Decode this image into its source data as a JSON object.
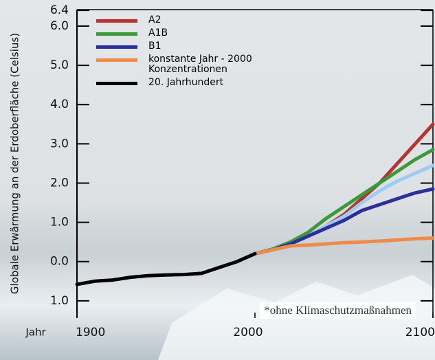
{
  "chart_data": {
    "type": "line",
    "y_label": "Globale Erwärmung an der Erdoberfläche (Celsius)",
    "x_label": "Jahr",
    "annotation": "*ohne Klimaschutzmaßnahmen",
    "xlim": [
      1900,
      2100
    ],
    "xticks": [
      1900,
      2000,
      2100
    ],
    "ylim": [
      -1.44,
      6.42
    ],
    "yticks": [
      6.4,
      {
        "value": 6,
        "label": "6.0"
      },
      {
        "value": 5,
        "label": "5.0"
      },
      {
        "value": 4,
        "label": "4.0"
      },
      {
        "value": 3,
        "label": "3.0"
      },
      {
        "value": 2,
        "label": "2.0"
      },
      {
        "value": 1,
        "label": "1.0"
      },
      {
        "value": 0,
        "label": "0.0"
      },
      {
        "value": -1,
        "label": "1.0"
      }
    ],
    "x": [
      1900,
      1910,
      1920,
      1930,
      1940,
      1950,
      1960,
      1970,
      1980,
      1990,
      2000,
      2010,
      2020,
      2030,
      2040,
      2050,
      2060,
      2070,
      2080,
      2090,
      2100
    ],
    "series": [
      {
        "name": "A2",
        "color": "#b8332f",
        "values": [
          null,
          null,
          null,
          null,
          null,
          null,
          null,
          null,
          null,
          null,
          0.2,
          0.3,
          0.45,
          0.65,
          0.9,
          1.2,
          1.6,
          2.0,
          2.5,
          3.0,
          3.5
        ]
      },
      {
        "name": "A1B",
        "color": "#3a9a3a",
        "values": [
          null,
          null,
          null,
          null,
          null,
          null,
          null,
          null,
          null,
          null,
          0.2,
          0.32,
          0.5,
          0.75,
          1.1,
          1.4,
          1.7,
          2.0,
          2.3,
          2.6,
          2.85
        ]
      },
      {
        "color": "#9ccbf5",
        "values": [
          null,
          null,
          null,
          null,
          null,
          null,
          null,
          null,
          null,
          null,
          0.2,
          0.3,
          0.45,
          0.65,
          0.9,
          1.15,
          1.5,
          1.8,
          2.05,
          2.25,
          2.45
        ]
      },
      {
        "name": "B1",
        "color": "#2a2f9a",
        "values": [
          null,
          null,
          null,
          null,
          null,
          null,
          null,
          null,
          null,
          null,
          0.2,
          0.3,
          0.45,
          0.65,
          0.85,
          1.05,
          1.3,
          1.45,
          1.6,
          1.75,
          1.85
        ]
      },
      {
        "name": "konstante Jahr - 2000\nKonzentrationen",
        "color": "#f08a4b",
        "values": [
          null,
          null,
          null,
          null,
          null,
          null,
          null,
          null,
          null,
          null,
          0.2,
          0.3,
          0.4,
          0.42,
          0.45,
          0.48,
          0.5,
          0.52,
          0.55,
          0.58,
          0.6
        ]
      },
      {
        "name": "20. Jahrhundert",
        "color": "#000000",
        "values": [
          -0.58,
          -0.5,
          -0.47,
          -0.4,
          -0.36,
          -0.34,
          -0.33,
          -0.3,
          -0.15,
          0.0,
          0.2,
          null,
          null,
          null,
          null,
          null,
          null,
          null,
          null,
          null,
          null
        ]
      }
    ]
  }
}
